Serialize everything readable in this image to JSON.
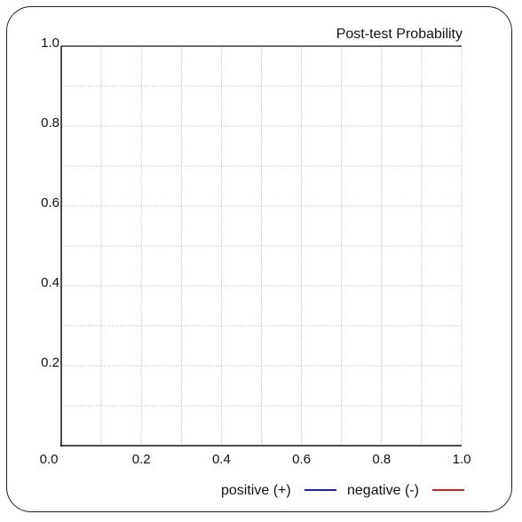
{
  "chart_data": {
    "type": "line",
    "title": "Post-test Probability",
    "xlabel": "",
    "ylabel": "",
    "xlim": [
      0,
      1
    ],
    "ylim": [
      0,
      1
    ],
    "grid": true,
    "grid_step": 0.1,
    "x_ticks": [
      "0.0",
      "0.2",
      "0.4",
      "0.6",
      "0.8",
      "1.0"
    ],
    "x_tick_values": [
      0,
      0.2,
      0.4,
      0.6,
      0.8,
      1.0
    ],
    "y_ticks": [
      "0.2",
      "0.4",
      "0.6",
      "0.8",
      "1.0"
    ],
    "y_tick_values": [
      0.2,
      0.4,
      0.6,
      0.8,
      1.0
    ],
    "legend_position": "bottom-right",
    "series": [
      {
        "name": "positive (+)",
        "color": "#1a1adf",
        "x": [],
        "y": []
      },
      {
        "name": "negative (-)",
        "color": "#df1a1a",
        "x": [],
        "y": []
      }
    ]
  }
}
